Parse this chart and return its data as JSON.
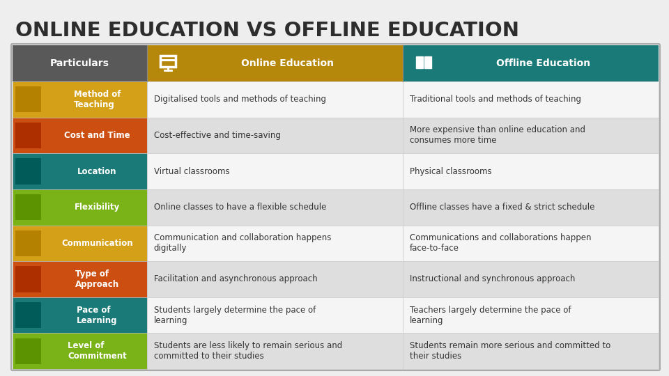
{
  "title": "ONLINE EDUCATION VS OFFLINE EDUCATION",
  "title_color": "#2d2d2d",
  "bg_color": "#eeeeee",
  "header_row": {
    "col0": {
      "text": "Particulars",
      "bg": "#595959",
      "fg": "#ffffff"
    },
    "col1": {
      "text": "Online Education",
      "bg": "#b5880c",
      "fg": "#ffffff"
    },
    "col2": {
      "text": "Offline Education",
      "bg": "#1a7a78",
      "fg": "#ffffff"
    }
  },
  "rows": [
    {
      "label": "Method of\nTeaching",
      "label_bg": "#d4a017",
      "online": "Digitalised tools and methods of teaching",
      "offline": "Traditional tools and methods of teaching",
      "row_bg0": "#f5f5f5",
      "row_bg1": "#e8e8e8"
    },
    {
      "label": "Cost and Time",
      "label_bg": "#cc4e11",
      "online": "Cost-effective and time-saving",
      "offline": "More expensive than online education and\nconsumes more time",
      "row_bg0": "#ebebeb",
      "row_bg1": "#dedede"
    },
    {
      "label": "Location",
      "label_bg": "#1a7a78",
      "online": "Virtual classrooms",
      "offline": "Physical classrooms",
      "row_bg0": "#f5f5f5",
      "row_bg1": "#e8e8e8"
    },
    {
      "label": "Flexibility",
      "label_bg": "#7ab317",
      "online": "Online classes to have a flexible schedule",
      "offline": "Offline classes have a fixed & strict schedule",
      "row_bg0": "#ebebeb",
      "row_bg1": "#dedede"
    },
    {
      "label": "Communication",
      "label_bg": "#d4a017",
      "online": "Communication and collaboration happens\ndigitally",
      "offline": "Communications and collaborations happen\nface-to-face",
      "row_bg0": "#f5f5f5",
      "row_bg1": "#e8e8e8"
    },
    {
      "label": "Type of\nApproach",
      "label_bg": "#cc4e11",
      "online": "Facilitation and asynchronous approach",
      "offline": "Instructional and synchronous approach",
      "row_bg0": "#ebebeb",
      "row_bg1": "#dedede"
    },
    {
      "label": "Pace of\nLearning",
      "label_bg": "#1a7a78",
      "online": "Students largely determine the pace of\nlearning",
      "offline": "Teachers largely determine the pace of\nlearning",
      "row_bg0": "#f5f5f5",
      "row_bg1": "#e8e8e8"
    },
    {
      "label": "Level of\nCommitment",
      "label_bg": "#7ab317",
      "online": "Students are less likely to remain serious and\ncommitted to their studies",
      "offline": "Students remain more serious and committed to\ntheir studies",
      "row_bg0": "#ebebeb",
      "row_bg1": "#dedede"
    }
  ]
}
